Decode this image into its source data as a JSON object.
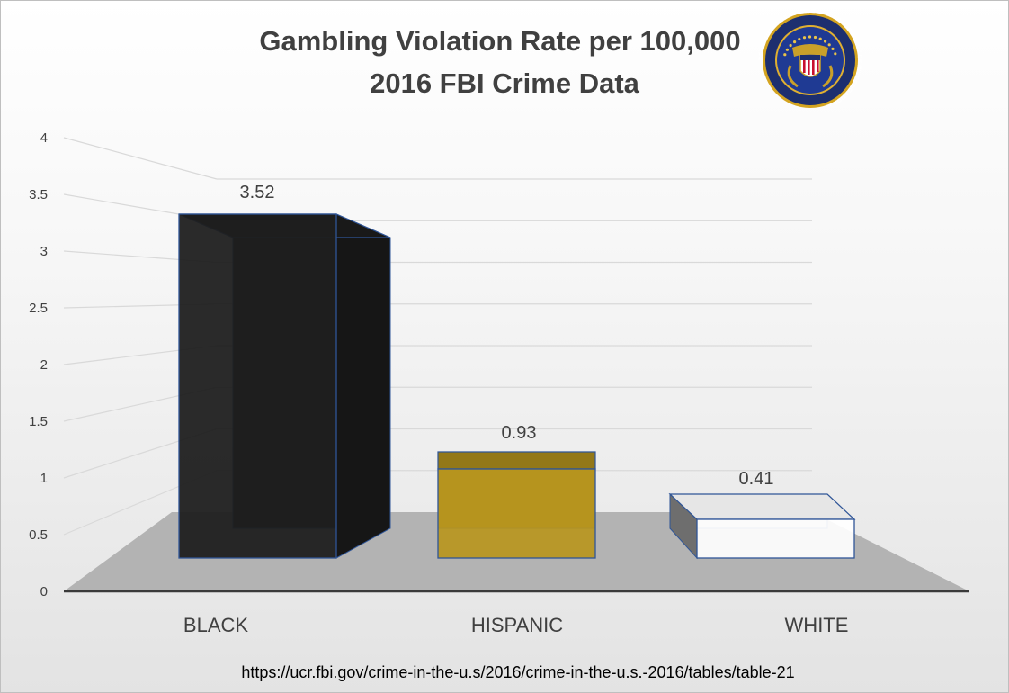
{
  "chart_data": {
    "type": "bar",
    "title": [
      "Gambling Violation Rate per 100,000",
      "2016 FBI Crime Data"
    ],
    "categories": [
      "BLACK",
      "HISPANIC",
      "WHITE"
    ],
    "values": [
      3.52,
      0.93,
      0.41
    ],
    "data_labels": [
      "3.52",
      "0.93",
      "0.41"
    ],
    "ylim": [
      0,
      4
    ],
    "yticks": [
      "0",
      "0.5",
      "1",
      "1.5",
      "2",
      "2.5",
      "3",
      "3.5",
      "4"
    ],
    "xlabel": "",
    "ylabel": "",
    "grid": true,
    "legend": "none",
    "three_d": true,
    "bar_colors": [
      "#1f1f1f",
      "#b8961e",
      "#ffffff"
    ],
    "edge_color": "#2f5597",
    "floor_color": "#b3b3b3"
  },
  "source": "https://ucr.fbi.gov/crime-in-the-u.s/2016/crime-in-the-u.s.-2016/tables/table-21",
  "logo": {
    "icon": "fbi-seal-icon",
    "ring_text": "DEPARTMENT OF JUSTICE • FEDERAL BUREAU OF INVESTIGATION •"
  }
}
